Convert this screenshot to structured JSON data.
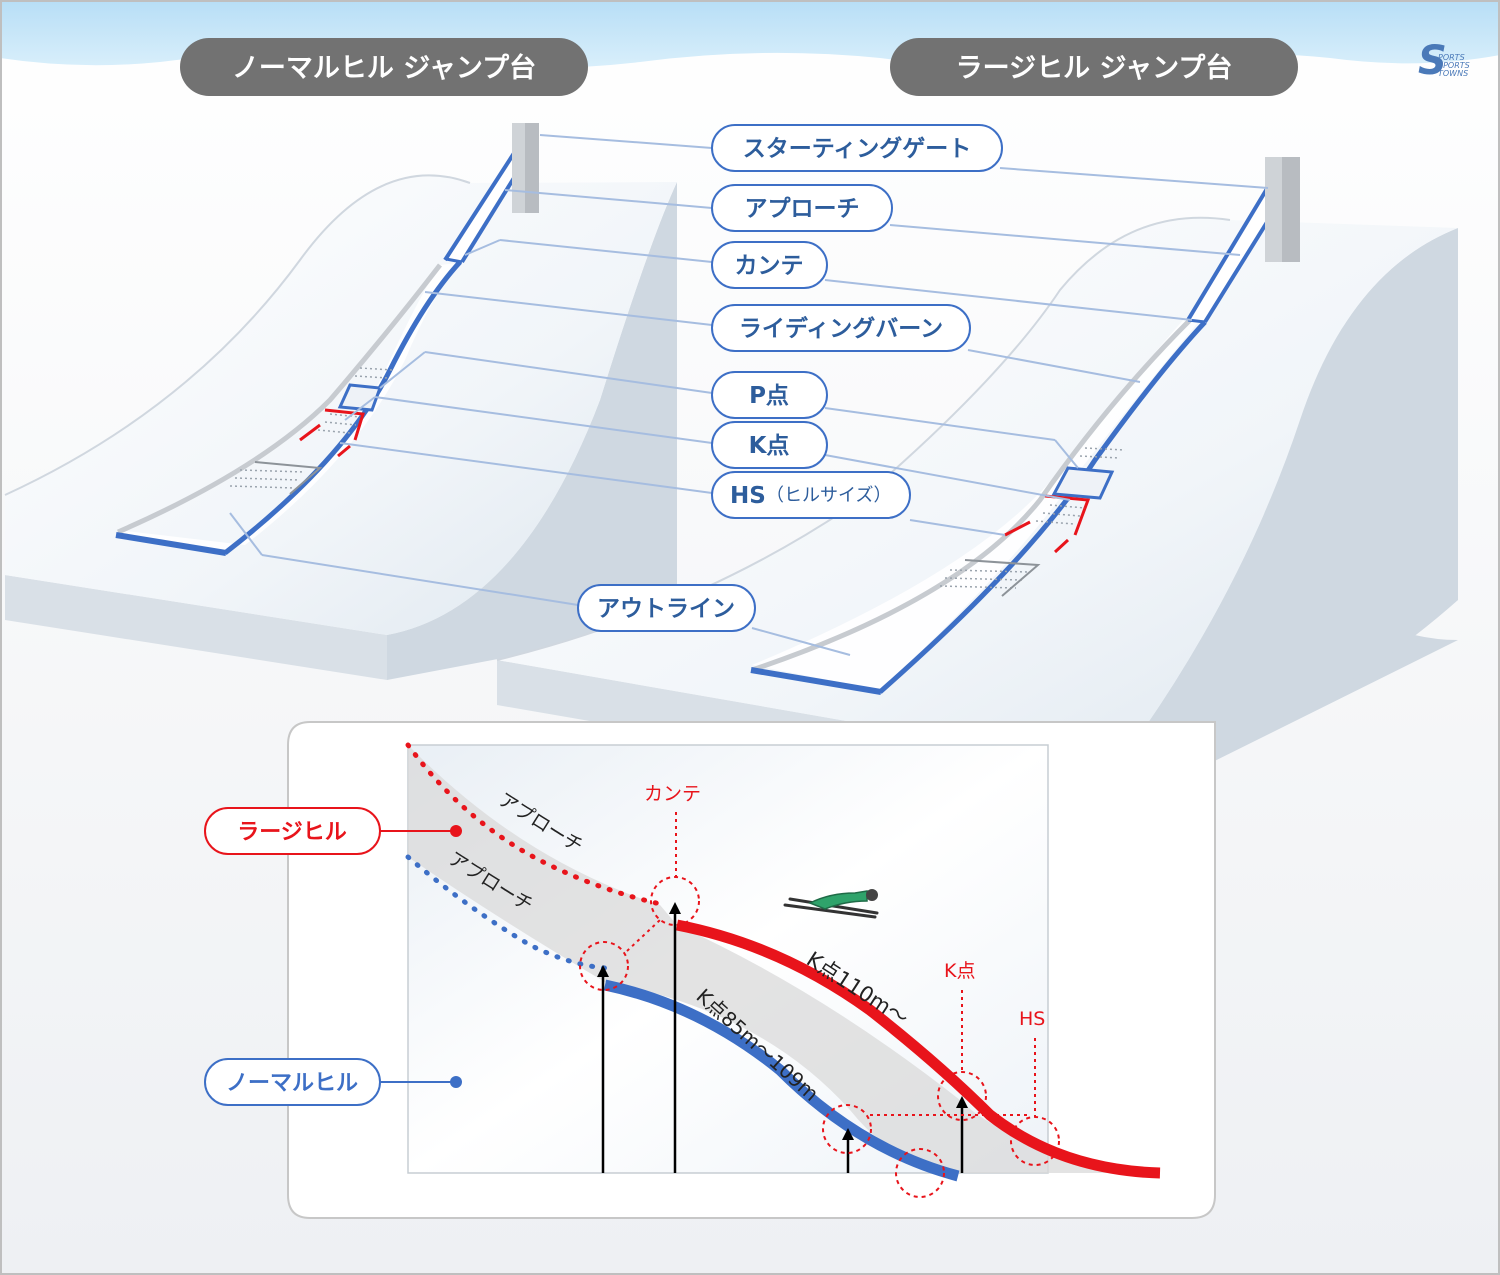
{
  "titles": {
    "normal": "ノーマルヒル ジャンプ台",
    "large": "ラージヒル ジャンプ台"
  },
  "labels": {
    "starting_gate": "スターティングゲート",
    "approach": "アプローチ",
    "kante": "カンテ",
    "riding_bahn": "ライディングバーン",
    "p_point": "P点",
    "k_point": "K点",
    "hs_main": "HS",
    "hs_sub": "（ヒルサイズ）",
    "outline": "アウトライン"
  },
  "profile": {
    "large_hill": "ラージヒル",
    "normal_hill": "ノーマルヒル",
    "approach_large": "アプローチ",
    "approach_normal": "アプローチ",
    "kante": "カンテ",
    "k_large": "K点110m～",
    "k_normal": "K点85m～109m",
    "k_point": "K点",
    "hs": "HS"
  },
  "colors": {
    "large": "#e8141b",
    "normal": "#3d6fc6",
    "title_bg": "#727272",
    "sky": "#c7e6f8"
  },
  "icons": {
    "logo": "sports-towns-logo"
  }
}
